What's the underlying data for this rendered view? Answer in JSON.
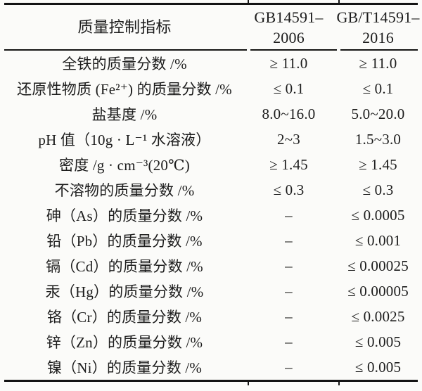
{
  "table": {
    "header": {
      "col1": "质量控制指标",
      "col2_line1": "GB14591–",
      "col2_line2": "2006",
      "col3_line1": "GB/T14591–",
      "col3_line2": "2016"
    },
    "rows": [
      {
        "label": "全铁的质量分数 /%",
        "gb2006": "≥ 11.0",
        "gb2016": "≥ 11.0"
      },
      {
        "label": "还原性物质 (Fe²⁺) 的质量分数 /%",
        "gb2006": "≤ 0.1",
        "gb2016": "≤ 0.1"
      },
      {
        "label": "盐基度 /%",
        "gb2006": "8.0~16.0",
        "gb2016": "5.0~20.0"
      },
      {
        "label": "pH 值（10g · L⁻¹ 水溶液）",
        "gb2006": "2~3",
        "gb2016": "1.5~3.0"
      },
      {
        "label": "密度 /g · cm⁻³(20℃)",
        "gb2006": "≥ 1.45",
        "gb2016": "≥ 1.45"
      },
      {
        "label": "不溶物的质量分数 /%",
        "gb2006": "≤ 0.3",
        "gb2016": "≤ 0.3"
      },
      {
        "label": "砷（As）的质量分数 /%",
        "gb2006": "–",
        "gb2016": "≤ 0.0005"
      },
      {
        "label": "铅（Pb）的质量分数 /%",
        "gb2006": "–",
        "gb2016": "≤ 0.001"
      },
      {
        "label": "镉（Cd）的质量分数 /%",
        "gb2006": "–",
        "gb2016": "≤ 0.00025"
      },
      {
        "label": "汞（Hg）的质量分数 /%",
        "gb2006": "–",
        "gb2016": "≤ 0.00005"
      },
      {
        "label": "铬（Cr）的质量分数 /%",
        "gb2006": "–",
        "gb2016": "≤ 0.0025"
      },
      {
        "label": "锌（Zn）的质量分数 /%",
        "gb2006": "–",
        "gb2016": "≤ 0.005"
      },
      {
        "label": "镍（Ni）的质量分数 /%",
        "gb2006": "–",
        "gb2016": "≤ 0.005"
      }
    ],
    "colors": {
      "text": "#1c1c1c",
      "rule": "#141414",
      "background": "#fbfbf9"
    }
  }
}
